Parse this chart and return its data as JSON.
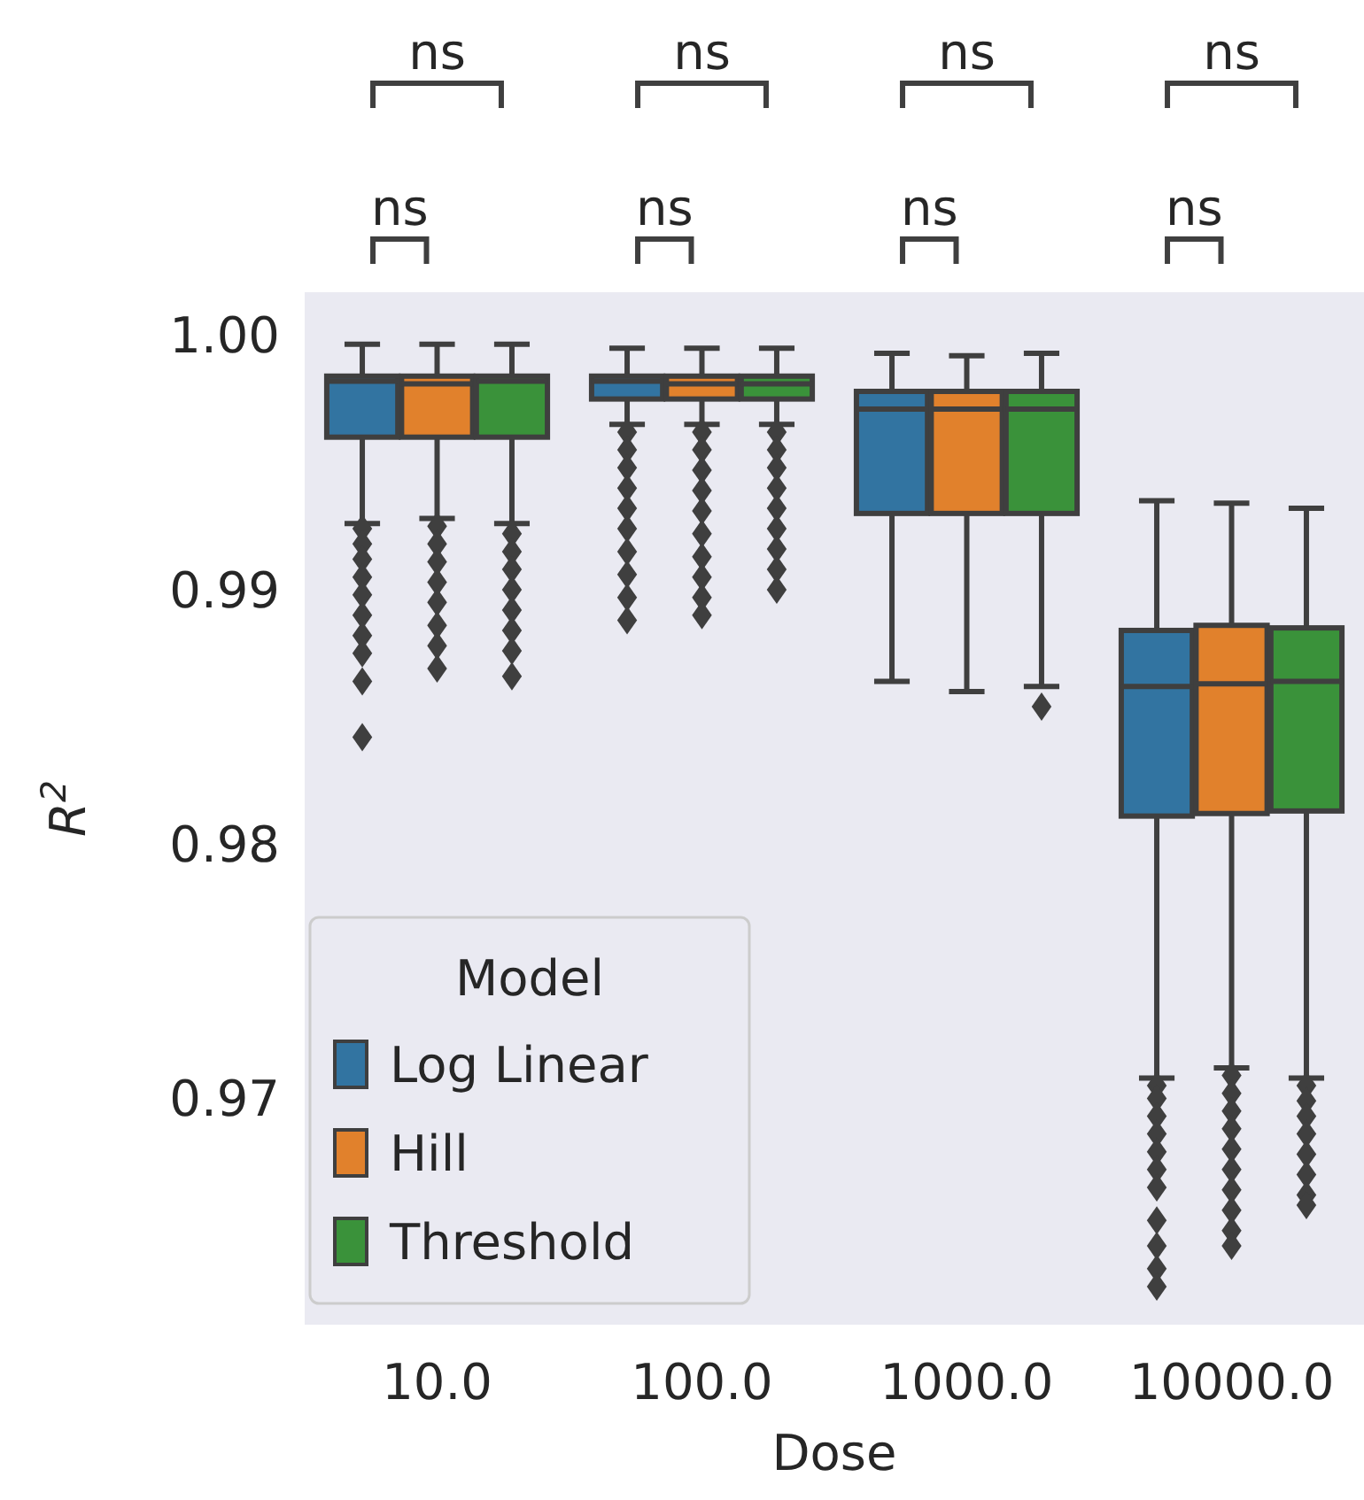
{
  "chart_data": {
    "type": "box",
    "xlabel": "Dose",
    "ylabel": "R$^{2}$",
    "legend_title": "Model",
    "legend": "bottom left",
    "grid": false,
    "marker": "diamond",
    "categories": [
      "10.0",
      "100.0",
      "1000.0",
      "10000.0"
    ],
    "ylim": [
      0.9611,
      1.0017
    ],
    "yticks": [
      {
        "value": 0.97,
        "label": "0.97"
      },
      {
        "value": 0.98,
        "label": "0.98"
      },
      {
        "value": 0.99,
        "label": "0.99"
      },
      {
        "value": 1.0,
        "label": "1.00"
      }
    ],
    "series": [
      {
        "name": "Log Linear",
        "color": "#3274a1",
        "boxes": [
          {
            "low": 0.9926,
            "q1": 0.996,
            "median": 0.9982,
            "q3": 0.9984,
            "high": 0.99965,
            "outliers": [
              0.9924,
              0.9918,
              0.9912,
              0.9905,
              0.9898,
              0.989,
              0.9882,
              0.9875,
              0.9864,
              0.9842
            ]
          },
          {
            "low": 0.9965,
            "q1": 0.9975,
            "median": 0.9982,
            "q3": 0.9984,
            "high": 0.9995,
            "outliers": [
              0.9962,
              0.9955,
              0.9948,
              0.994,
              0.9932,
              0.9924,
              0.9915,
              0.9906,
              0.9897,
              0.9888
            ]
          },
          {
            "low": 0.9864,
            "q1": 0.993,
            "median": 0.9971,
            "q3": 0.9978,
            "high": 0.9993
          },
          {
            "low": 0.9708,
            "q1": 0.9811,
            "median": 0.9862,
            "q3": 0.9884,
            "high": 0.9935,
            "outliers": [
              0.9705,
              0.97,
              0.9693,
              0.9686,
              0.9679,
              0.9672,
              0.9665,
              0.9652,
              0.9642,
              0.9633,
              0.9626
            ]
          }
        ]
      },
      {
        "name": "Hill",
        "color": "#e1812c",
        "boxes": [
          {
            "low": 0.9928,
            "q1": 0.996,
            "median": 0.9981,
            "q3": 0.9984,
            "high": 0.99965,
            "outliers": [
              0.9925,
              0.9918,
              0.9911,
              0.9903,
              0.9895,
              0.9886,
              0.9878,
              0.9869
            ]
          },
          {
            "low": 0.9965,
            "q1": 0.9975,
            "median": 0.9981,
            "q3": 0.9984,
            "high": 0.9995,
            "outliers": [
              0.9962,
              0.9955,
              0.9947,
              0.9939,
              0.9931,
              0.9922,
              0.9913,
              0.9905,
              0.9897,
              0.989
            ]
          },
          {
            "low": 0.986,
            "q1": 0.993,
            "median": 0.9971,
            "q3": 0.9978,
            "high": 0.9992
          },
          {
            "low": 0.9712,
            "q1": 0.9812,
            "median": 0.9863,
            "q3": 0.9886,
            "high": 0.9934,
            "outliers": [
              0.9709,
              0.9702,
              0.9695,
              0.9688,
              0.968,
              0.9672,
              0.9664,
              0.9656,
              0.9648,
              0.9642
            ]
          }
        ]
      },
      {
        "name": "Threshold",
        "color": "#3a923a",
        "boxes": [
          {
            "low": 0.9926,
            "q1": 0.996,
            "median": 0.9982,
            "q3": 0.9984,
            "high": 0.99965,
            "outliers": [
              0.9922,
              0.9915,
              0.9908,
              0.99,
              0.9892,
              0.9884,
              0.9876,
              0.9866
            ]
          },
          {
            "low": 0.9965,
            "q1": 0.9975,
            "median": 0.9981,
            "q3": 0.9984,
            "high": 0.9995,
            "outliers": [
              0.9962,
              0.9955,
              0.9948,
              0.994,
              0.9932,
              0.9924,
              0.9916,
              0.9908,
              0.99
            ]
          },
          {
            "low": 0.9862,
            "q1": 0.993,
            "median": 0.9971,
            "q3": 0.9978,
            "high": 0.9993,
            "outliers": [
              0.9854
            ]
          },
          {
            "low": 0.9708,
            "q1": 0.9813,
            "median": 0.9864,
            "q3": 0.9885,
            "high": 0.9932,
            "outliers": [
              0.9705,
              0.9699,
              0.9693,
              0.9686,
              0.9678,
              0.967,
              0.9662,
              0.9658
            ]
          }
        ]
      }
    ],
    "annotations": [
      "ns",
      "ns",
      "ns",
      "ns",
      "ns",
      "ns",
      "ns",
      "ns"
    ]
  }
}
